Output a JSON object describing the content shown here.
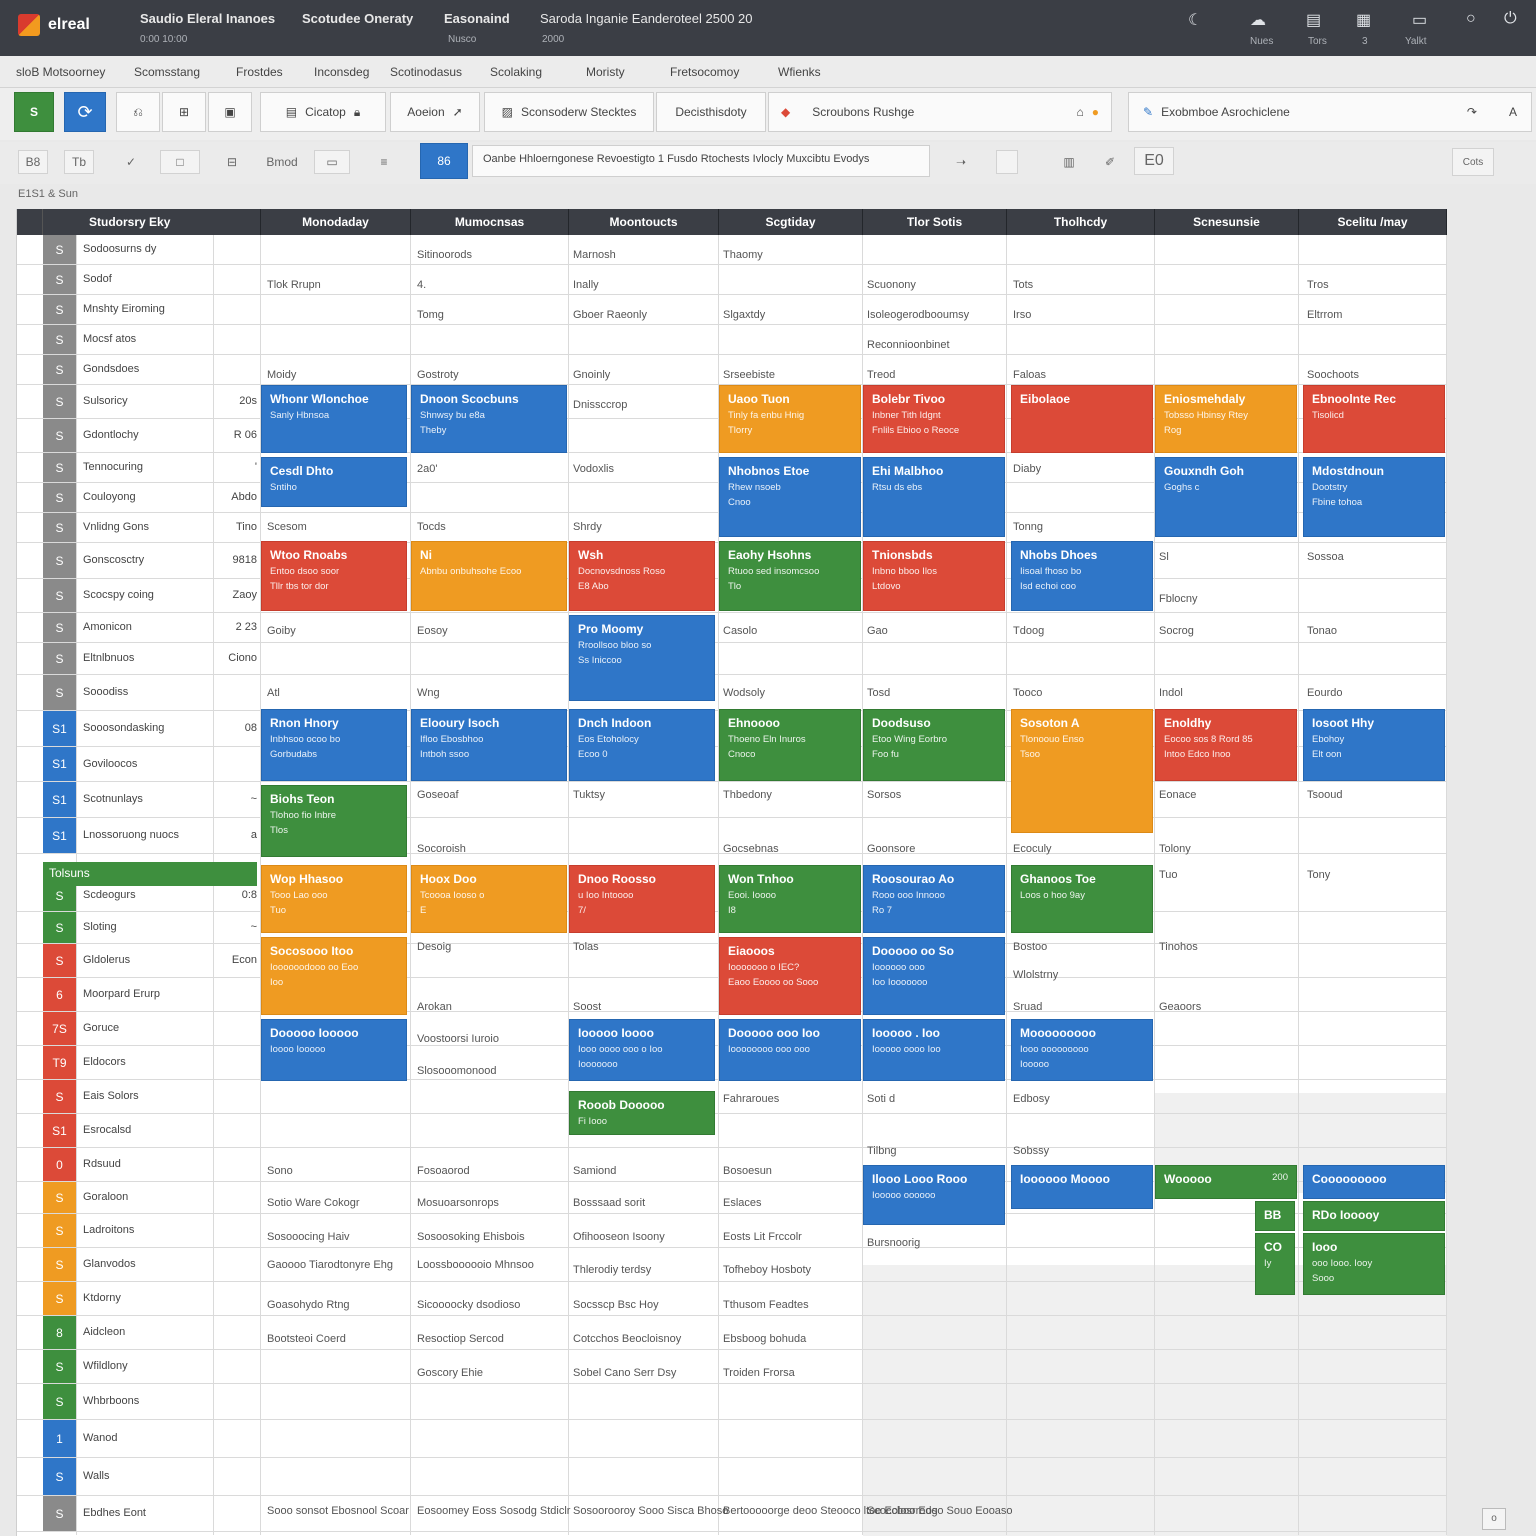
{
  "app": {
    "logo_text": "elreal",
    "tabs": [
      {
        "label": "Saudio Eleral Inanoes",
        "sub": "0:00 10:00"
      },
      {
        "label": "Scotudee Oneraty",
        "sub": ""
      },
      {
        "label": "Easonaind",
        "sub": "Nusco"
      },
      {
        "label": "Saroda Inganie Eanderoteel 2500 20",
        "sub": "2000"
      }
    ],
    "window_icons": [
      "moon-icon",
      "cloud-icon",
      "grid-icon",
      "layout-icon",
      "window-icon",
      "circle-icon",
      "power-icon"
    ],
    "window_icon_labels": [
      "Nues",
      "Tors",
      "3",
      "Yalkt"
    ]
  },
  "menu": [
    "sloB Motsoorney",
    "Scomsstang",
    "Frostdes",
    "Inconsdeg",
    "Scotinodasus",
    "Scolaking",
    "Moristy",
    "Fretsocomoy",
    "Wfienks"
  ],
  "toolbar": {
    "btn1_label": "Cicatop",
    "btn2_label": "Aoeion",
    "btn3_label": "Sconsoderw  Stecktes",
    "btn4_label": "Decisthisdoty",
    "btn5_label": "Scroubons Rushge",
    "btn6_label": "Exobmboe  Asrochiclene"
  },
  "format": {
    "items": [
      "B8",
      "Tb",
      "Bmod"
    ],
    "cell_ref": "86",
    "formula_text": "Oanbe Hhloerngonese Revoestigto 1 Fusdo Rtochests Ivlocly Muxcibtu Evodys",
    "right_box": "E0",
    "right_btn": "Cots"
  },
  "sheet_label": "E1S1 & Sun",
  "grid": {
    "headers": [
      "Studorsry Eky",
      "Monodaday",
      "Mumocnsas",
      "Moontoucts",
      "Scgtiday",
      "Tlor Sotis",
      "Tholhcdy",
      "Scnesunsie",
      "Scelitu /may"
    ],
    "rows": [
      {
        "n": "S",
        "label": "Sodoosurns dy",
        "val": "",
        "color": "#8a8a8a"
      },
      {
        "n": "S",
        "label": "Sodof",
        "val": "",
        "color": "#8a8a8a"
      },
      {
        "n": "S",
        "label": "Mnshty Eiroming",
        "val": "",
        "color": "#8a8a8a"
      },
      {
        "n": "S",
        "label": "Mocsf atos",
        "val": "",
        "color": "#8a8a8a"
      },
      {
        "n": "S",
        "label": "Gondsdoes",
        "val": "",
        "color": "#8a8a8a"
      },
      {
        "n": "S",
        "label": "Sulsoricy",
        "val": "20s",
        "color": "#8a8a8a"
      },
      {
        "n": "S",
        "label": "Gdontlochy",
        "val": "R 06",
        "color": "#8a8a8a"
      },
      {
        "n": "S",
        "label": "Tennocuring",
        "val": "'",
        "color": "#8a8a8a"
      },
      {
        "n": "S",
        "label": "Couloyong",
        "val": "Abdo",
        "color": "#8a8a8a"
      },
      {
        "n": "S",
        "label": "Vnlidng Gons",
        "val": "Tino",
        "color": "#8a8a8a"
      },
      {
        "n": "S",
        "label": "Gonscosctry",
        "val": "9818",
        "color": "#8a8a8a"
      },
      {
        "n": "S",
        "label": "Scocspy coing",
        "val": "Zaoy",
        "color": "#8a8a8a"
      },
      {
        "n": "S",
        "label": "Amonicon",
        "val": "2 23",
        "color": "#8a8a8a"
      },
      {
        "n": "S",
        "label": "Eltnlbnuos",
        "val": "Ciono",
        "color": "#8a8a8a"
      },
      {
        "n": "S",
        "label": "Sooodiss",
        "val": "",
        "color": "#8a8a8a"
      },
      {
        "n": "S1",
        "label": "Sooosondasking",
        "val": "08",
        "color": "#2f76c8"
      },
      {
        "n": "S1",
        "label": "Goviloocos",
        "val": "",
        "color": "#2f76c8"
      },
      {
        "n": "S1",
        "label": "Scotnunlays",
        "val": "~",
        "color": "#2f76c8"
      },
      {
        "n": "S1",
        "label": "Lnossoruong nuocs",
        "val": "a",
        "color": "#2f76c8"
      }
    ],
    "section_label": "Tolsuns",
    "rows2": [
      {
        "n": "S",
        "label": "Scdeogurs",
        "val": "0:8",
        "color": "#3e8f3e"
      },
      {
        "n": "S",
        "label": "Sloting",
        "val": "~",
        "color": "#3e8f3e"
      },
      {
        "n": "S",
        "label": "Gldolerus",
        "val": "Econ",
        "color": "#dc4a38"
      },
      {
        "n": "6",
        "label": "Moorpard Erurp",
        "val": "",
        "color": "#dc4a38"
      },
      {
        "n": "7S",
        "label": "Goruce",
        "val": "",
        "color": "#dc4a38"
      },
      {
        "n": "T9",
        "label": "Eldocors",
        "val": "",
        "color": "#dc4a38"
      },
      {
        "n": "S",
        "label": "Eais Solors",
        "val": "",
        "color": "#dc4a38"
      },
      {
        "n": "S1",
        "label": "Esrocalsd",
        "val": "",
        "color": "#dc4a38"
      },
      {
        "n": "0",
        "label": "Rdsuud",
        "val": "",
        "color": "#dc4a38"
      },
      {
        "n": "S",
        "label": "Goraloon",
        "val": "",
        "color": "#ef9b22"
      },
      {
        "n": "S",
        "label": "Ladroitons",
        "val": "",
        "color": "#ef9b22"
      },
      {
        "n": "S",
        "label": "Glanvodos",
        "val": "",
        "color": "#ef9b22"
      },
      {
        "n": "S",
        "label": "Ktdorny",
        "val": "",
        "color": "#ef9b22"
      },
      {
        "n": "8",
        "label": "Aidcleon",
        "val": "",
        "color": "#3e8f3e"
      },
      {
        "n": "S",
        "label": "Wfildlony",
        "val": "",
        "color": "#3e8f3e"
      },
      {
        "n": "S",
        "label": "Whbrboons",
        "val": "",
        "color": "#3e8f3e"
      },
      {
        "n": "1",
        "label": "Wanod",
        "val": "",
        "color": "#2f76c8"
      },
      {
        "n": "S",
        "label": "Walls",
        "val": "",
        "color": "#2f76c8"
      },
      {
        "n": "S",
        "label": "Ebdhes Eont",
        "val": "",
        "color": "#8a8a8a"
      }
    ],
    "cells": [
      "Sitinoorods",
      "Marnosh",
      "Thaomy",
      "Tlok Rrupn",
      "4.",
      "Inally",
      "Scuonony",
      "Tots",
      "Tros",
      "Tomg",
      "Gboer Raeonly",
      "Slgaxtdy",
      "Isoleogerodbooumsy",
      "Irso",
      "Eltrrom",
      "Reconnioonbinet",
      "Moidy",
      "Gostroty",
      "Gnoinly",
      "Srseebiste",
      "Treod",
      "Faloas",
      "Soochoots",
      "Dnissccrop",
      "2a0'",
      "Vodoxlis",
      "Diaby",
      "Scesom",
      "Tocds",
      "Shrdy",
      "Tonng",
      "Sl",
      "Sossoa",
      "Fblocny",
      "Goiby",
      "Eosoy",
      "Casolo",
      "Gao",
      "Tdoog",
      "Socrog",
      "Tonao",
      "Atl",
      "Wng",
      "Wodsoly",
      "Tosd",
      "Tooco",
      "Indol",
      "Eourdo",
      "Goseoaf",
      "Tuktsy",
      "Thbedony",
      "Sorsos",
      "Eonace",
      "Tsooud",
      "Socoroish",
      "Gocsebnas",
      "Goonsore",
      "Ecoculy",
      "Tolony",
      "Tuo",
      "Tony",
      "Desoig",
      "Tolas",
      "Bostoo",
      "Tinohos",
      "Wlolstrny",
      "Arokan",
      "Soost",
      "Sruad",
      "Geaoors",
      "Voostoorsi Iuroio",
      "Slosooomonood",
      "Fahraroues",
      "Soti d",
      "Edbosy",
      "Tilbng",
      "Sobssy",
      "Sono",
      "Fosoaorod",
      "Samiond",
      "Bosoesun",
      "Sotio Ware Cokogr",
      "Mosuoarsonrops",
      "Bosssaad sorit",
      "Eslaces",
      "Sosooocing Haiv",
      "Sosoosoking Ehisbois",
      "Ofihooseon Isoony",
      "Eosts Lit Frccolr",
      "Gaoooo Tiarodtonyre Ehg",
      "Loossboooooio Mhnsoo",
      "Thlerodiy terdsy",
      "Tofheboy Hosboty",
      "Bursnoorig",
      "Goasohydo Rtng",
      "Sicoooocky dsodioso",
      "Socsscp Bsc Hoy",
      "Tthusom Feadtes",
      "Bootsteoi Coerd",
      "Resoctiop Sercod",
      "Cotcchos Beocloisnoy",
      "Ebsboog bohuda",
      "Goscory Ehie",
      "Sobel Cano Serr Dsy",
      "Troiden Frorsa",
      "Sooo sonsot Ebosnool Scoar",
      "Eosoomey Eoss Sosodg Stdiclr",
      "Sosoorooroy Sooo Sisca Bhoso",
      "Bertooooorge deoo Steooco ltoe Eolosrrodg",
      "Scoccboo Eoso Souo Eooaso"
    ],
    "events": [
      {
        "t": "Whonr Wlonchoe",
        "s": "Sanly Hbnsoa",
        "s2": "",
        "c": "blue"
      },
      {
        "t": "Dnoon Scocbuns",
        "s": "Shnwsy bu e8a",
        "s2": "Theby",
        "c": "blue"
      },
      {
        "t": "Cesdl Dhto",
        "s": "Sntiho",
        "s2": "",
        "c": "blue"
      },
      {
        "t": "Uaoo Tuon",
        "s": "Tinly fa enbu Hnig",
        "s2": "Tlorry",
        "c": "orange"
      },
      {
        "t": "Bolebr Tivoo",
        "s": "Inbner Tith Idgnt",
        "s2": "Fnlils Ebioo o Reoce",
        "c": "red"
      },
      {
        "t": "Eibolaoe",
        "s": "",
        "s2": "",
        "c": "red"
      },
      {
        "t": "Eniosmehdaly",
        "s": "Tobsso Hbinsy Rtey",
        "s2": "Rog",
        "c": "orange"
      },
      {
        "t": "Ebnoolnte Rec",
        "s": "Tisolicd",
        "s2": "",
        "c": "red"
      },
      {
        "t": "Nhobnos Etoe",
        "s": "Rhew nsoeb",
        "s2": "Cnoo",
        "c": "blue"
      },
      {
        "t": "Ehi Malbhoo",
        "s": "Rtsu ds ebs",
        "s2": "",
        "c": "blue"
      },
      {
        "t": "Gouxndh Goh",
        "s": "Goghs c",
        "s2": "",
        "c": "blue"
      },
      {
        "t": "Mdostdnoun",
        "s": "Dootstry",
        "s2": "Fbine tohoa",
        "c": "blue"
      },
      {
        "t": "Wtoo Rnoabs",
        "s": "Entoo dsoo soor",
        "s2": "Tllr tbs tor dor",
        "c": "red"
      },
      {
        "t": "Ni",
        "s": "Abnbu onbuhsohe Ecoo",
        "s2": "",
        "c": "orange"
      },
      {
        "t": "Wsh",
        "s": "Docnovsdnoss Roso",
        "s2": "E8 Abo",
        "c": "red"
      },
      {
        "t": "Eaohy Hsohns",
        "s": "Rtuoo sed insomcsoo",
        "s2": "Tlo",
        "c": "green"
      },
      {
        "t": "Tnionsbds",
        "s": "Inbno bboo Ilos",
        "s2": "Ltdovo",
        "c": "red"
      },
      {
        "t": "Nhobs Dhoes",
        "s": "Iisoal fhoso bo",
        "s2": "Isd echoi coo",
        "c": "blue"
      },
      {
        "t": "Pro Moomy",
        "s": "Rroollsoo bloo so",
        "s2": "Ss Iniccoo",
        "c": "blue"
      },
      {
        "t": "Rnon Hnory",
        "s": "Inbhsoo ocoo bo",
        "s2": "Gorbudabs",
        "c": "blue"
      },
      {
        "t": "Elooury Isoch",
        "s": "Ifloo Ebosbhoo",
        "s2": "Intboh ssoo",
        "c": "blue"
      },
      {
        "t": "Dnch Indoon",
        "s": "Eos Etoholocy",
        "s2": "Ecoo 0",
        "c": "blue"
      },
      {
        "t": "Biohs Teon",
        "s": "Tlohoo fio Inbre",
        "s2": "Tlos",
        "c": "green"
      },
      {
        "t": "Ehnoooo",
        "s": "Thoeno Eln Inuros",
        "s2": "Cnoco",
        "c": "green"
      },
      {
        "t": "Doodsuso",
        "s": "Etoo Wing Eorbro",
        "s2": "Foo fu",
        "c": "green"
      },
      {
        "t": "Sosoton A",
        "s": "Tlonoouo Enso",
        "s2": "Tsoo",
        "c": "orange"
      },
      {
        "t": "Enoldhy",
        "s": "Eocoo sos 8 Rord 85",
        "s2": "Intoo Edco Inoo",
        "c": "red"
      },
      {
        "t": "Iosoot Hhy",
        "s": "Ebohoy",
        "s2": "Elt oon",
        "c": "blue"
      },
      {
        "t": "Ghanoos Toe",
        "s": "Loos o hoo 9ay",
        "s2": "",
        "c": "green"
      },
      {
        "t": "Wop Hhasoo",
        "s": "Tooo Lao ooo",
        "s2": "Tuo",
        "c": "orange"
      },
      {
        "t": "Hoox Doo",
        "s": "Tcoooa Iooso o",
        "s2": "E",
        "c": "orange"
      },
      {
        "t": "Dnoo Roosso",
        "s": "u Ioo Intoooo",
        "s2": "7/",
        "c": "red"
      },
      {
        "t": "Won Tnhoo",
        "s": "Eooi. Ioooo",
        "s2": "I8",
        "c": "green"
      },
      {
        "t": "Roosourao Ao",
        "s": "Rooo ooo Innooo",
        "s2": "Ro 7",
        "c": "blue"
      },
      {
        "t": "Socosooo Itoo",
        "s": "Ioooooodooo oo Eoo",
        "s2": "Ioo",
        "c": "orange"
      },
      {
        "t": "Eiaooos",
        "s": "Iooooooo o IEC?",
        "s2": "Eaoo Eoooo oo Sooo",
        "c": "red"
      },
      {
        "t": "Dooooo oo So",
        "s": "Ioooooo ooo",
        "s2": "Ioo Iooooooo",
        "c": "blue"
      },
      {
        "t": "Dooooo Iooooo",
        "s": "Ioooo Iooooo",
        "s2": "",
        "c": "blue"
      },
      {
        "t": "Iooooo Ioooo",
        "s": "Iooo oooo ooo o Ioo",
        "s2": "Iooooooo",
        "c": "blue"
      },
      {
        "t": "Dooooo ooo Ioo",
        "s": "Ioooooooo ooo ooo",
        "s2": "",
        "c": "blue"
      },
      {
        "t": "Iooooo . Ioo",
        "s": "Iooooo oooo Ioo",
        "s2": "",
        "c": "blue"
      },
      {
        "t": "Mooooooooo",
        "s": "Iooo ooooooooo",
        "s2": "Iooooo",
        "c": "blue"
      },
      {
        "t": "Rooob Dooooo",
        "s": "Fi Iooo",
        "s2": "",
        "c": "green"
      },
      {
        "t": "Ilooo Looo Rooo",
        "s": "Iooooo oooooo",
        "s2": "",
        "c": "blue"
      },
      {
        "t": "Ioooooo Moooo",
        "s": "",
        "s2": "",
        "c": "blue"
      },
      {
        "t": "Wooooo",
        "s": "",
        "s2": "",
        "val": "200",
        "c": "green"
      },
      {
        "t": "Cooooooooo",
        "s": "",
        "s2": "",
        "c": "blue"
      },
      {
        "t": "RDo Iooooy",
        "s": "",
        "s2": "",
        "c": "green"
      },
      {
        "t": "Iooo",
        "s": "ooo Iooo. Iooy",
        "s2": "Sooo",
        "c": "green"
      },
      {
        "t": "BB",
        "s": "",
        "s2": "",
        "c": "green"
      },
      {
        "t": "CO",
        "s": "Iy",
        "s2": "",
        "c": "green"
      }
    ]
  },
  "scroll_label": "o"
}
